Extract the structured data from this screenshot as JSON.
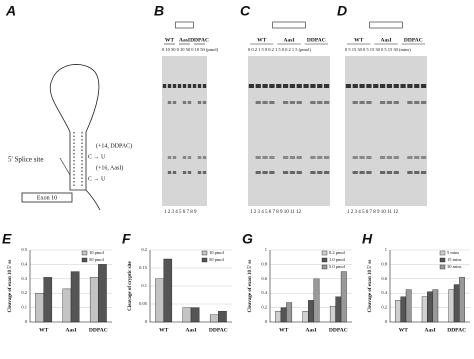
{
  "hairpin": {
    "label": "A",
    "splice_site": "5' Splice site",
    "exon": "Exon 10",
    "mut1": "(+14, DDPAC)",
    "mut2": "(+16, AasI)",
    "change1": "C → U",
    "change2": "C → U"
  },
  "gels": [
    {
      "label": "B",
      "groups": [
        "WT",
        "AasI",
        "DDPAC"
      ],
      "conditions": "0 10 50  0 10 50  0 10 50 (pmol)",
      "lanes": "1 2 3 4 5 6 7 8 9"
    },
    {
      "label": "C",
      "groups": [
        "WT",
        "AasI",
        "DDPAC"
      ],
      "conditions": "0 0.2 1 5  0 0.2 1 5  0 0.2 1 5 (pmol)",
      "lanes": "1 2 3 4  5 6 7 8  9 10 11 12"
    },
    {
      "label": "D",
      "groups": [
        "WT",
        "AasI",
        "DDPAC"
      ],
      "conditions": "0 5 15 30  0 5 15 30  0 5 15 30 (mins)",
      "lanes": "1 2 3 4  5 6 7 8  9 10 11 12"
    }
  ],
  "chart_data": [
    {
      "type": "bar",
      "label": "E",
      "ylabel": "Cleavage of exon 10 5' ss",
      "categories": [
        "WT",
        "AasI",
        "DDPAC"
      ],
      "series": [
        {
          "name": "10 pmol",
          "color": "#c4c4c4",
          "values": [
            0.2,
            0.23,
            0.31
          ]
        },
        {
          "name": "50 pmol",
          "color": "#555555",
          "values": [
            0.31,
            0.35,
            0.4
          ]
        }
      ],
      "ylim": [
        0,
        0.5
      ],
      "yticks": [
        0,
        0.1,
        0.2,
        0.3,
        0.4,
        0.5
      ],
      "grid": true
    },
    {
      "type": "bar",
      "label": "F",
      "ylabel": "Cleavage of cryptic site",
      "categories": [
        "WT",
        "AasI",
        "DDPAC"
      ],
      "series": [
        {
          "name": "10 pmol",
          "color": "#c4c4c4",
          "values": [
            0.12,
            0.04,
            0.02
          ]
        },
        {
          "name": "50 pmol",
          "color": "#555555",
          "values": [
            0.175,
            0.04,
            0.03
          ]
        }
      ],
      "ylim": [
        0,
        0.2
      ],
      "yticks": [
        0,
        0.05,
        0.1,
        0.15,
        0.2
      ],
      "grid": true
    },
    {
      "type": "bar",
      "label": "G",
      "ylabel": "Cleavage of exon 10 5' ss",
      "categories": [
        "WT",
        "AasI",
        "DDPAC"
      ],
      "series": [
        {
          "name": "0.2 pmol",
          "color": "#d0d0d0",
          "values": [
            0.15,
            0.15,
            0.22
          ]
        },
        {
          "name": "1.0 pmol",
          "color": "#555555",
          "values": [
            0.2,
            0.3,
            0.35
          ]
        },
        {
          "name": "5.0 pmol",
          "color": "#999999",
          "values": [
            0.27,
            0.6,
            0.7
          ]
        }
      ],
      "ylim": [
        0,
        1
      ],
      "yticks": [
        0,
        0.2,
        0.4,
        0.6,
        0.8,
        1
      ],
      "grid": true
    },
    {
      "type": "bar",
      "label": "H",
      "ylabel": "Cleavage of exon 10 5' ss",
      "categories": [
        "WT",
        "AasI",
        "DDPAC"
      ],
      "series": [
        {
          "name": "5 mins",
          "color": "#d0d0d0",
          "values": [
            0.3,
            0.35,
            0.45
          ]
        },
        {
          "name": "15 mins",
          "color": "#555555",
          "values": [
            0.35,
            0.42,
            0.52
          ]
        },
        {
          "name": "30 mins",
          "color": "#999999",
          "values": [
            0.45,
            0.45,
            0.62
          ]
        }
      ],
      "ylim": [
        0,
        1
      ],
      "yticks": [
        0,
        0.2,
        0.4,
        0.6,
        0.8,
        1
      ],
      "grid": true
    }
  ]
}
